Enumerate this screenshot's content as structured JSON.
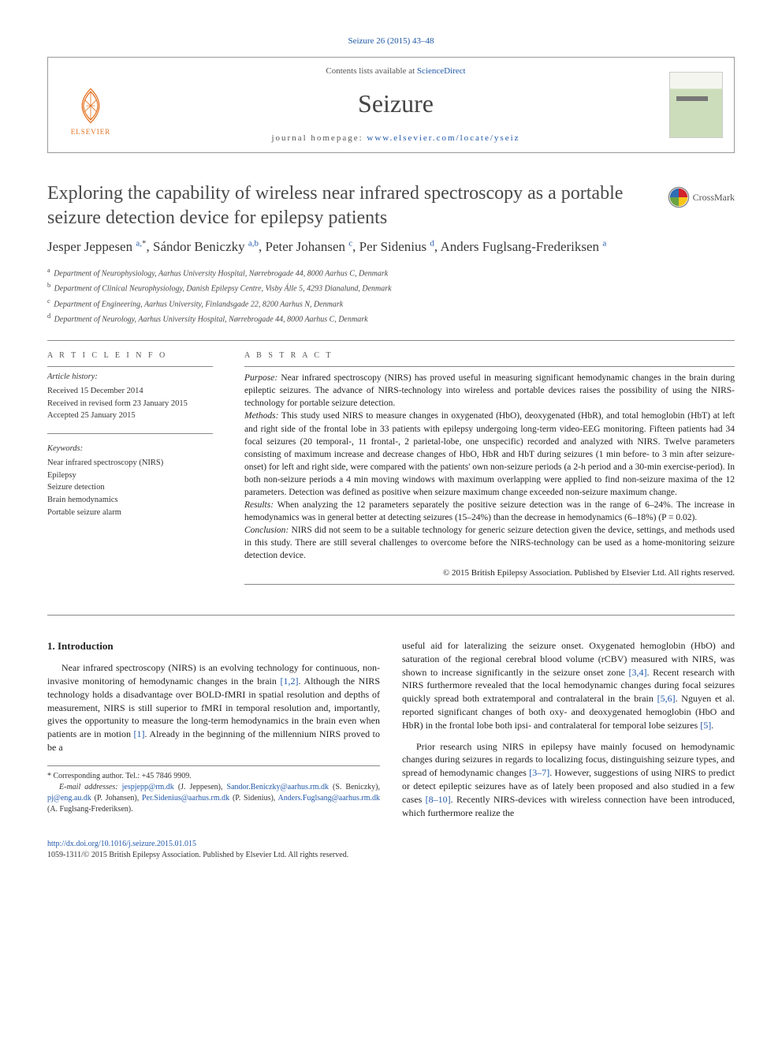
{
  "citation": "Seizure 26 (2015) 43–48",
  "header": {
    "contents_prefix": "Contents lists available at ",
    "contents_link": "ScienceDirect",
    "journal": "Seizure",
    "homepage_prefix": "journal homepage: ",
    "homepage_url": "www.elsevier.com/locate/yseiz",
    "publisher_name": "ELSEVIER"
  },
  "crossmark_label": "CrossMark",
  "article": {
    "title": "Exploring the capability of wireless near infrared spectroscopy as a portable seizure detection device for epilepsy patients",
    "authors_html": "Jesper Jeppesen <sup class='sup-link'>a,</sup><sup>*</sup>, Sándor Beniczky <sup class='sup-link'>a,b</sup>, Peter Johansen <sup class='sup-link'>c</sup>, Per Sidenius <sup class='sup-link'>d</sup>, Anders Fuglsang-Frederiksen <sup class='sup-link'>a</sup>",
    "affiliations": [
      {
        "sup": "a",
        "text": "Department of Neurophysiology, Aarhus University Hospital, Nørrebrogade 44, 8000 Aarhus C, Denmark"
      },
      {
        "sup": "b",
        "text": "Department of Clinical Neurophysiology, Danish Epilepsy Centre, Visby Álle 5, 4293 Dianalund, Denmark"
      },
      {
        "sup": "c",
        "text": "Department of Engineering, Aarhus University, Finlandsgade 22, 8200 Aarhus N, Denmark"
      },
      {
        "sup": "d",
        "text": "Department of Neurology, Aarhus University Hospital, Nørrebrogade 44, 8000 Aarhus C, Denmark"
      }
    ]
  },
  "info": {
    "heading": "A R T I C L E   I N F O",
    "history_label": "Article history:",
    "history": [
      "Received 15 December 2014",
      "Received in revised form 23 January 2015",
      "Accepted 25 January 2015"
    ],
    "keywords_label": "Keywords:",
    "keywords": [
      "Near infrared spectroscopy (NIRS)",
      "Epilepsy",
      "Seizure detection",
      "Brain hemodynamics",
      "Portable seizure alarm"
    ]
  },
  "abstract": {
    "heading": "A B S T R A C T",
    "purpose_label": "Purpose:",
    "purpose": " Near infrared spectroscopy (NIRS) has proved useful in measuring significant hemodynamic changes in the brain during epileptic seizures. The advance of NIRS-technology into wireless and portable devices raises the possibility of using the NIRS-technology for portable seizure detection.",
    "methods_label": "Methods:",
    "methods": " This study used NIRS to measure changes in oxygenated (HbO), deoxygenated (HbR), and total hemoglobin (HbT) at left and right side of the frontal lobe in 33 patients with epilepsy undergoing long-term video-EEG monitoring. Fifteen patients had 34 focal seizures (20 temporal-, 11 frontal-, 2 parietal-lobe, one unspecific) recorded and analyzed with NIRS. Twelve parameters consisting of maximum increase and decrease changes of HbO, HbR and HbT during seizures (1 min before- to 3 min after seizure-onset) for left and right side, were compared with the patients' own non-seizure periods (a 2-h period and a 30-min exercise-period). In both non-seizure periods a 4 min moving windows with maximum overlapping were applied to find non-seizure maxima of the 12 parameters. Detection was defined as positive when seizure maximum change exceeded non-seizure maximum change.",
    "results_label": "Results:",
    "results": " When analyzing the 12 parameters separately the positive seizure detection was in the range of 6–24%. The increase in hemodynamics was in general better at detecting seizures (15–24%) than the decrease in hemodynamics (6–18%) (P = 0.02).",
    "conclusion_label": "Conclusion:",
    "conclusion": " NIRS did not seem to be a suitable technology for generic seizure detection given the device, settings, and methods used in this study. There are still several challenges to overcome before the NIRS-technology can be used as a home-monitoring seizure detection device.",
    "copyright": "© 2015 British Epilepsy Association. Published by Elsevier Ltd. All rights reserved."
  },
  "body": {
    "section_heading": "1. Introduction",
    "p1a": "Near infrared spectroscopy (NIRS) is an evolving technology for continuous, non-invasive monitoring of hemodynamic changes in the brain ",
    "p1_ref1": "[1,2]",
    "p1b": ". Although the NIRS technology holds a disadvantage over BOLD-fMRI in spatial resolution and depths of measurement, NIRS is still superior to fMRI in temporal resolution and, importantly, gives the opportunity to measure the long-term hemodynamics in the brain even when patients are in motion ",
    "p1_ref2": "[1]",
    "p1c": ". Already in the beginning of the millennium NIRS proved to be a",
    "p2a": "useful aid for lateralizing the seizure onset. Oxygenated hemoglobin (HbO) and saturation of the regional cerebral blood volume (rCBV) measured with NIRS, was shown to increase significantly in the seizure onset zone ",
    "p2_ref1": "[3,4]",
    "p2b": ". Recent research with NIRS furthermore revealed that the local hemodynamic changes during focal seizures quickly spread both extratemporal and contralateral in the brain ",
    "p2_ref2": "[5,6]",
    "p2c": ". Nguyen et al. reported significant changes of both oxy- and deoxygenated hemoglobin (HbO and HbR) in the frontal lobe both ipsi- and contralateral for temporal lobe seizures ",
    "p2_ref3": "[5]",
    "p2d": ".",
    "p3a": "Prior research using NIRS in epilepsy have mainly focused on hemodynamic changes during seizures in regards to localizing focus, distinguishing seizure types, and spread of hemodynamic changes ",
    "p3_ref1": "[3–7]",
    "p3b": ". However, suggestions of using NIRS to predict or detect epileptic seizures have as of lately been proposed and also studied in a few cases ",
    "p3_ref2": "[8–10]",
    "p3c": ". Recently NIRS-devices with wireless connection have been introduced, which furthermore realize the"
  },
  "footnotes": {
    "corresponding": "* Corresponding author. Tel.: +45 7846 9909.",
    "emails_label": "E-mail addresses: ",
    "emails": [
      {
        "addr": "jespjepp@rm.dk",
        "who": " (J. Jeppesen), "
      },
      {
        "addr": "Sandor.Beniczky@aarhus.rm.dk",
        "who": " (S. Beniczky), "
      },
      {
        "addr": "pj@eng.au.dk",
        "who": " (P. Johansen), "
      },
      {
        "addr": "Per.Sidenius@aarhus.rm.dk",
        "who": " (P. Sidenius), "
      },
      {
        "addr": "Anders.Fuglsang@aarhus.rm.dk",
        "who": " (A. Fuglsang-Frederiksen)."
      }
    ]
  },
  "bottom": {
    "doi": "http://dx.doi.org/10.1016/j.seizure.2015.01.015",
    "issn_line": "1059-1311/© 2015 British Epilepsy Association. Published by Elsevier Ltd. All rights reserved."
  },
  "colors": {
    "link": "#2158a8",
    "elsevier_orange": "#e37322",
    "crossmark_red": "#d2232a",
    "crossmark_yellow": "#f7c616",
    "crossmark_blue": "#2e6db4",
    "crossmark_green": "#6aa442",
    "rule": "#888888"
  }
}
